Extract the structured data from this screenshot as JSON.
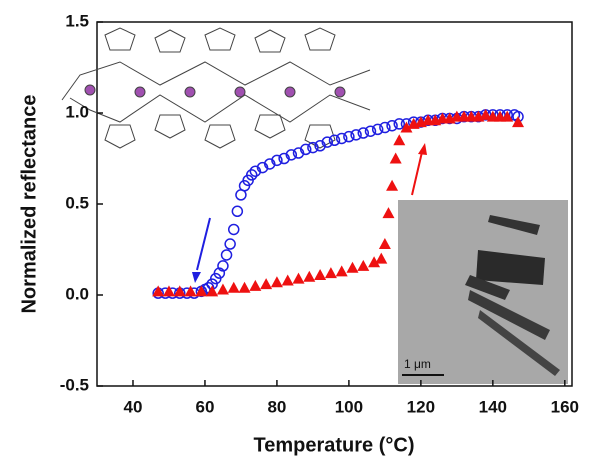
{
  "chart_data": {
    "type": "scatter",
    "xlabel": "Temperature (°C)",
    "ylabel": "Normalized reflectance",
    "xlim": [
      30,
      162
    ],
    "ylim": [
      -0.5,
      1.5
    ],
    "xticks": [
      40,
      60,
      80,
      100,
      120,
      140,
      160
    ],
    "yticks": [
      -0.5,
      {
        "value": 0,
        "label": "0.0"
      },
      0.5,
      {
        "value": 1,
        "label": "1.0"
      },
      1.5
    ],
    "annotations": [
      "1 μm"
    ],
    "series": [
      {
        "marker": "circle",
        "color": "#1f1fe0",
        "x": [
          47,
          49,
          51,
          53,
          55,
          57,
          59,
          60,
          61,
          62,
          63,
          64,
          65,
          66,
          67,
          68,
          69,
          70,
          71,
          72,
          73,
          74,
          76,
          78,
          80,
          82,
          84,
          86,
          88,
          90,
          92,
          94,
          96,
          98,
          100,
          102,
          104,
          106,
          108,
          110,
          112,
          114,
          116,
          118,
          120,
          122,
          124,
          126,
          128,
          130,
          132,
          134,
          136,
          138,
          140,
          142,
          144,
          146,
          147
        ],
        "values": [
          0.01,
          0.01,
          0.01,
          0.01,
          0.01,
          0.01,
          0.02,
          0.03,
          0.04,
          0.06,
          0.09,
          0.12,
          0.16,
          0.22,
          0.28,
          0.36,
          0.46,
          0.55,
          0.6,
          0.63,
          0.66,
          0.68,
          0.7,
          0.72,
          0.74,
          0.75,
          0.77,
          0.78,
          0.8,
          0.81,
          0.82,
          0.84,
          0.85,
          0.86,
          0.87,
          0.88,
          0.89,
          0.9,
          0.91,
          0.92,
          0.93,
          0.94,
          0.94,
          0.95,
          0.95,
          0.96,
          0.96,
          0.97,
          0.97,
          0.97,
          0.98,
          0.98,
          0.98,
          0.99,
          0.99,
          0.99,
          0.99,
          0.99,
          0.98
        ]
      },
      {
        "marker": "triangle",
        "color": "#ee1111",
        "x": [
          47,
          50,
          53,
          56,
          59,
          62,
          65,
          68,
          71,
          74,
          77,
          80,
          83,
          86,
          89,
          92,
          95,
          98,
          101,
          104,
          107,
          109,
          110,
          111,
          112,
          113,
          114,
          116,
          118,
          120,
          122,
          124,
          126,
          128,
          130,
          132,
          134,
          136,
          138,
          140,
          142,
          144,
          147
        ],
        "values": [
          0.02,
          0.02,
          0.02,
          0.02,
          0.02,
          0.02,
          0.03,
          0.04,
          0.04,
          0.05,
          0.06,
          0.07,
          0.08,
          0.09,
          0.1,
          0.11,
          0.12,
          0.13,
          0.15,
          0.16,
          0.18,
          0.2,
          0.28,
          0.45,
          0.6,
          0.75,
          0.85,
          0.92,
          0.94,
          0.95,
          0.96,
          0.96,
          0.97,
          0.97,
          0.98,
          0.98,
          0.98,
          0.98,
          0.99,
          0.98,
          0.98,
          0.98,
          0.95
        ]
      }
    ]
  }
}
